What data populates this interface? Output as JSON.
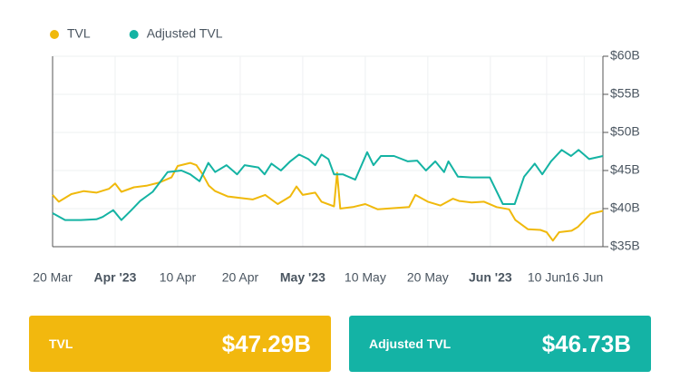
{
  "chart_data": {
    "type": "line",
    "xlim": [
      0,
      88
    ],
    "xticks": [
      {
        "value": 0,
        "label": "20 Mar"
      },
      {
        "value": 10,
        "label": "Apr '23"
      },
      {
        "value": 20,
        "label": "10 Apr"
      },
      {
        "value": 30,
        "label": "20 Apr"
      },
      {
        "value": 40,
        "label": "May '23"
      },
      {
        "value": 50,
        "label": "10 May"
      },
      {
        "value": 60,
        "label": "20 May"
      },
      {
        "value": 70,
        "label": "Jun '23"
      },
      {
        "value": 79,
        "label": "10 Jun"
      },
      {
        "value": 85,
        "label": "16 Jun"
      }
    ],
    "ylim": [
      35,
      60
    ],
    "yticks": [
      {
        "value": 35,
        "label": "$35B"
      },
      {
        "value": 40,
        "label": "$40B"
      },
      {
        "value": 45,
        "label": "$45B"
      },
      {
        "value": 50,
        "label": "$50B"
      },
      {
        "value": 55,
        "label": "$55B"
      },
      {
        "value": 60,
        "label": "$60B"
      }
    ],
    "grid": true,
    "series": [
      {
        "name": "TVL",
        "color": "#f0b90b",
        "x": [
          0,
          1,
          3,
          5,
          7,
          9,
          10,
          11,
          13,
          15,
          17,
          19,
          20,
          22,
          23,
          24,
          25,
          26,
          28,
          30,
          32,
          34,
          36,
          38,
          39,
          40,
          42,
          43,
          45,
          45.5,
          46,
          48,
          50,
          52,
          55,
          57,
          58,
          60,
          62,
          64,
          65,
          67,
          69,
          71,
          73,
          74,
          76,
          78,
          79,
          80,
          81,
          83,
          84,
          86,
          88
        ],
        "values": [
          41.8,
          40.9,
          41.9,
          42.3,
          42.1,
          42.6,
          43.3,
          42.2,
          42.8,
          43.0,
          43.4,
          44.1,
          45.6,
          46.0,
          45.7,
          44.5,
          43.0,
          42.3,
          41.6,
          41.4,
          41.2,
          41.8,
          40.6,
          41.6,
          42.9,
          41.8,
          42.1,
          40.9,
          40.3,
          44.7,
          40.0,
          40.2,
          40.6,
          39.9,
          40.1,
          40.2,
          41.8,
          40.9,
          40.4,
          41.3,
          41.0,
          40.8,
          40.9,
          40.2,
          39.9,
          38.5,
          37.3,
          37.2,
          36.9,
          35.8,
          36.9,
          37.1,
          37.6,
          39.3,
          39.7
        ]
      },
      {
        "name": "Adjusted TVL",
        "color": "#14b3a3",
        "x": [
          0,
          2,
          4.5,
          7,
          8,
          9.7,
          11,
          12.6,
          14,
          16,
          18.4,
          20.6,
          22,
          23.5,
          24.9,
          26,
          27.8,
          29.5,
          30.7,
          32.9,
          33.9,
          35,
          36.5,
          38,
          39.4,
          40.9,
          42,
          43,
          44.1,
          45,
          46.4,
          48.4,
          50.3,
          51.3,
          52.5,
          54.6,
          56.8,
          58.3,
          59.7,
          61.2,
          62.6,
          63.3,
          64.8,
          67,
          69.9,
          72,
          73.9,
          75.4,
          77.1,
          78.3,
          79.7,
          81.4,
          82.9,
          84.1,
          85.8,
          88
        ],
        "values": [
          39.4,
          38.5,
          38.5,
          38.6,
          38.9,
          39.8,
          38.5,
          39.8,
          41.0,
          42.2,
          44.8,
          45.0,
          44.5,
          43.6,
          46.0,
          44.8,
          45.7,
          44.5,
          45.7,
          45.4,
          44.5,
          45.9,
          45.0,
          46.2,
          47.1,
          46.5,
          45.7,
          47.1,
          46.5,
          44.5,
          44.5,
          43.8,
          47.4,
          45.7,
          46.9,
          46.9,
          46.2,
          46.3,
          45.0,
          46.2,
          44.8,
          46.2,
          44.2,
          44.1,
          44.1,
          40.6,
          40.6,
          44.2,
          45.9,
          44.5,
          46.2,
          47.7,
          46.9,
          47.7,
          46.5,
          46.9
        ]
      }
    ]
  },
  "cards": [
    {
      "label": "TVL",
      "value": "$47.29B"
    },
    {
      "label": "Adjusted TVL",
      "value": "$46.73B"
    }
  ]
}
